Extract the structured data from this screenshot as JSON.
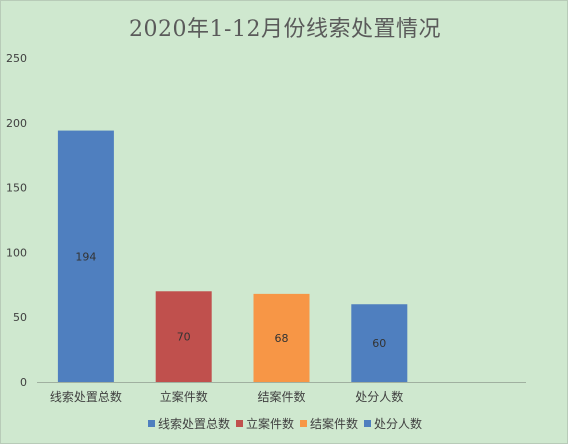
{
  "chart_data": {
    "type": "bar",
    "title": "2020年1-12月份线索处置情况",
    "categories": [
      "线索处置总数",
      "立案件数",
      "结案件数",
      "处分人数"
    ],
    "values": [
      194,
      70,
      68,
      60
    ],
    "data_labels": [
      "194",
      "70",
      "68",
      "60"
    ],
    "colors": [
      "#4f7fbf",
      "#c0504d",
      "#f79646",
      "#4f7fbf"
    ],
    "xlabel": "",
    "ylabel": "",
    "ylim": [
      0,
      250
    ],
    "yticks": [
      0,
      50,
      100,
      150,
      200,
      250
    ],
    "ytick_labels": [
      "0",
      "50",
      "100",
      "150",
      "200",
      "250"
    ],
    "grid": false,
    "legend": {
      "placement": "bottom",
      "entries": [
        "线索处置总数",
        "立案件数",
        "结案件数",
        "处分人数"
      ]
    }
  }
}
